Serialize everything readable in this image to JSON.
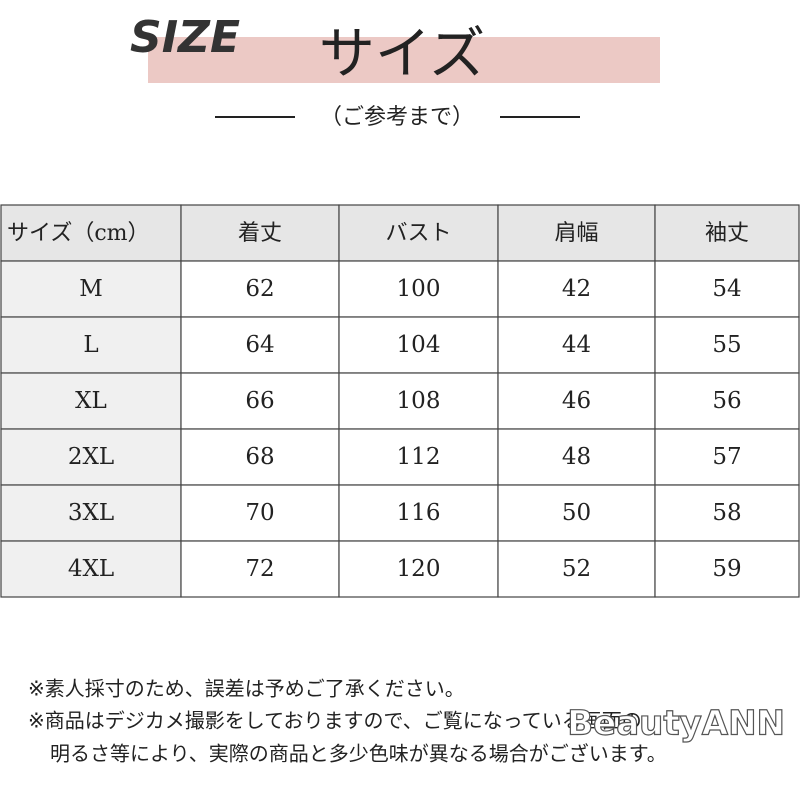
{
  "header": {
    "logo": "SIZE",
    "title": "サイズ",
    "subtitle": "（ご参考まで）"
  },
  "table": {
    "columns": [
      "サイズ（cm）",
      "着丈",
      "バスト",
      "肩幅",
      "袖丈"
    ],
    "rows": [
      [
        "M",
        62,
        100,
        42,
        54
      ],
      [
        "L",
        64,
        104,
        44,
        55
      ],
      [
        "XL",
        66,
        108,
        46,
        56
      ],
      [
        "2XL",
        68,
        112,
        48,
        57
      ],
      [
        "3XL",
        70,
        116,
        50,
        58
      ],
      [
        "4XL",
        72,
        120,
        52,
        59
      ]
    ]
  },
  "notes": [
    "※素人採寸のため、誤差は予めご了承ください。",
    "※商品はデジカメ撮影をしておりますので、ご覧になっている画面の",
    "明るさ等により、実際の商品と多少色味が異なる場合がございます。"
  ],
  "watermark": "BeautyANN"
}
